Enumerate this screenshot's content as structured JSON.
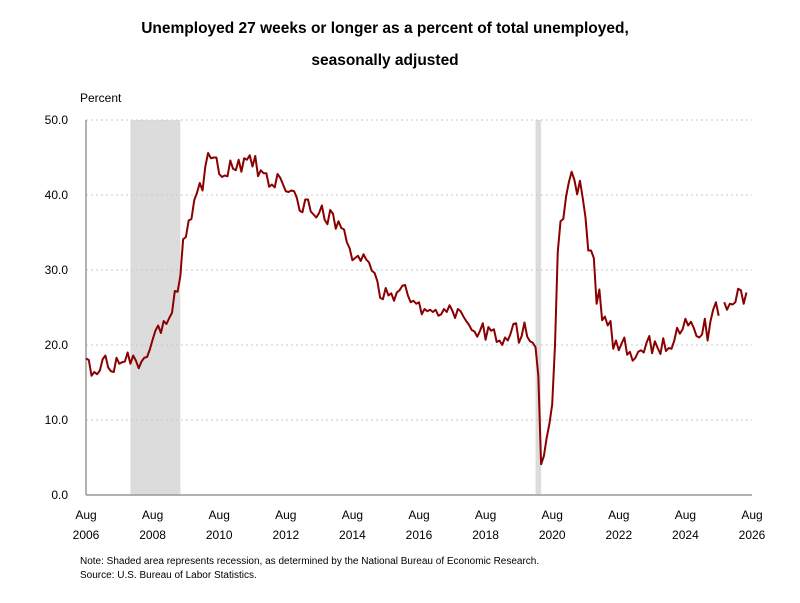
{
  "title_line1": "Unemployed 27 weeks or longer as a percent of total unemployed,",
  "title_line2": "seasonally adjusted",
  "note": "Note: Shaded area represents recession, as determined by the National Bureau of Economic Research.",
  "source": "Source: U.S. Bureau of Labor Statistics.",
  "colors": {
    "line": "#8b0000",
    "recession": "#dcdcdc",
    "grid": "#c8c8c8",
    "axis": "#000000"
  },
  "chart_data": {
    "type": "line",
    "ylabel": "Percent",
    "ylim": [
      0,
      50
    ],
    "yticks": [
      "0.0",
      "10.0",
      "20.0",
      "30.0",
      "40.0",
      "50.0"
    ],
    "xlim": [
      "2006-08",
      "2026-08"
    ],
    "xticks": [
      {
        "month": "Aug",
        "year": "2006",
        "x": "2006-08"
      },
      {
        "month": "Aug",
        "year": "2008",
        "x": "2008-08"
      },
      {
        "month": "Aug",
        "year": "2010",
        "x": "2010-08"
      },
      {
        "month": "Aug",
        "year": "2012",
        "x": "2012-08"
      },
      {
        "month": "Aug",
        "year": "2014",
        "x": "2014-08"
      },
      {
        "month": "Aug",
        "year": "2016",
        "x": "2016-08"
      },
      {
        "month": "Aug",
        "year": "2018",
        "x": "2018-08"
      },
      {
        "month": "Aug",
        "year": "2020",
        "x": "2020-08"
      },
      {
        "month": "Aug",
        "year": "2022",
        "x": "2022-08"
      },
      {
        "month": "Aug",
        "year": "2024",
        "x": "2024-08"
      },
      {
        "month": "Aug",
        "year": "2026",
        "x": "2026-08"
      }
    ],
    "grid": "horizontal-dotted",
    "recessions": [
      {
        "start": "2007-12",
        "end": "2009-06"
      },
      {
        "start": "2020-02",
        "end": "2020-04"
      }
    ],
    "series": [
      {
        "points": [
          [
            "2006-08",
            18.2
          ],
          [
            "2006-09",
            18.0
          ],
          [
            "2006-10",
            15.9
          ],
          [
            "2006-11",
            16.4
          ],
          [
            "2006-12",
            16.1
          ],
          [
            "2007-01",
            16.6
          ],
          [
            "2007-02",
            18.1
          ],
          [
            "2007-03",
            18.6
          ],
          [
            "2007-04",
            17.0
          ],
          [
            "2007-05",
            16.5
          ],
          [
            "2007-06",
            16.4
          ],
          [
            "2007-07",
            18.3
          ],
          [
            "2007-08",
            17.5
          ],
          [
            "2007-09",
            17.7
          ],
          [
            "2007-10",
            17.8
          ],
          [
            "2007-11",
            19.0
          ],
          [
            "2007-12",
            17.5
          ],
          [
            "2008-01",
            18.6
          ],
          [
            "2008-02",
            17.9
          ],
          [
            "2008-03",
            16.9
          ],
          [
            "2008-04",
            17.8
          ],
          [
            "2008-05",
            18.3
          ],
          [
            "2008-06",
            18.4
          ],
          [
            "2008-07",
            19.4
          ],
          [
            "2008-08",
            20.7
          ],
          [
            "2008-09",
            21.9
          ],
          [
            "2008-10",
            22.6
          ],
          [
            "2008-11",
            21.6
          ],
          [
            "2008-12",
            23.2
          ],
          [
            "2009-01",
            22.8
          ],
          [
            "2009-02",
            23.6
          ],
          [
            "2009-03",
            24.3
          ],
          [
            "2009-04",
            27.2
          ],
          [
            "2009-05",
            27.1
          ],
          [
            "2009-06",
            29.2
          ],
          [
            "2009-07",
            34.1
          ],
          [
            "2009-08",
            34.4
          ],
          [
            "2009-09",
            36.6
          ],
          [
            "2009-10",
            36.8
          ],
          [
            "2009-11",
            39.3
          ],
          [
            "2009-12",
            40.3
          ],
          [
            "2010-01",
            41.6
          ],
          [
            "2010-02",
            40.6
          ],
          [
            "2010-03",
            43.8
          ],
          [
            "2010-04",
            45.6
          ],
          [
            "2010-05",
            44.9
          ],
          [
            "2010-06",
            45.0
          ],
          [
            "2010-07",
            45.0
          ],
          [
            "2010-08",
            42.8
          ],
          [
            "2010-09",
            42.4
          ],
          [
            "2010-10",
            42.6
          ],
          [
            "2010-11",
            42.5
          ],
          [
            "2010-12",
            44.6
          ],
          [
            "2011-01",
            43.5
          ],
          [
            "2011-02",
            43.3
          ],
          [
            "2011-03",
            44.7
          ],
          [
            "2011-04",
            43.1
          ],
          [
            "2011-05",
            44.9
          ],
          [
            "2011-06",
            44.7
          ],
          [
            "2011-07",
            45.3
          ],
          [
            "2011-08",
            43.8
          ],
          [
            "2011-09",
            45.2
          ],
          [
            "2011-10",
            42.5
          ],
          [
            "2011-11",
            43.3
          ],
          [
            "2011-12",
            42.9
          ],
          [
            "2012-01",
            42.9
          ],
          [
            "2012-02",
            41.1
          ],
          [
            "2012-03",
            41.4
          ],
          [
            "2012-04",
            41.0
          ],
          [
            "2012-05",
            42.8
          ],
          [
            "2012-06",
            42.3
          ],
          [
            "2012-07",
            41.4
          ],
          [
            "2012-08",
            40.5
          ],
          [
            "2012-09",
            40.4
          ],
          [
            "2012-10",
            40.6
          ],
          [
            "2012-11",
            40.5
          ],
          [
            "2012-12",
            39.6
          ],
          [
            "2013-01",
            37.9
          ],
          [
            "2013-02",
            37.7
          ],
          [
            "2013-03",
            39.4
          ],
          [
            "2013-04",
            39.4
          ],
          [
            "2013-05",
            37.8
          ],
          [
            "2013-06",
            37.4
          ],
          [
            "2013-07",
            37.0
          ],
          [
            "2013-08",
            37.6
          ],
          [
            "2013-09",
            38.6
          ],
          [
            "2013-10",
            36.7
          ],
          [
            "2013-11",
            36.1
          ],
          [
            "2013-12",
            38.0
          ],
          [
            "2014-01",
            37.5
          ],
          [
            "2014-02",
            35.5
          ],
          [
            "2014-03",
            36.5
          ],
          [
            "2014-04",
            35.6
          ],
          [
            "2014-05",
            35.4
          ],
          [
            "2014-06",
            33.7
          ],
          [
            "2014-07",
            32.9
          ],
          [
            "2014-08",
            31.3
          ],
          [
            "2014-09",
            31.6
          ],
          [
            "2014-10",
            31.9
          ],
          [
            "2014-11",
            31.2
          ],
          [
            "2014-12",
            32.1
          ],
          [
            "2015-01",
            31.4
          ],
          [
            "2015-02",
            31.0
          ],
          [
            "2015-03",
            29.9
          ],
          [
            "2015-04",
            29.6
          ],
          [
            "2015-05",
            28.5
          ],
          [
            "2015-06",
            26.3
          ],
          [
            "2015-07",
            26.1
          ],
          [
            "2015-08",
            27.6
          ],
          [
            "2015-09",
            26.6
          ],
          [
            "2015-10",
            26.9
          ],
          [
            "2015-11",
            25.9
          ],
          [
            "2015-12",
            27.0
          ],
          [
            "2016-01",
            27.3
          ],
          [
            "2016-02",
            27.9
          ],
          [
            "2016-03",
            28.0
          ],
          [
            "2016-04",
            26.6
          ],
          [
            "2016-05",
            25.7
          ],
          [
            "2016-06",
            25.9
          ],
          [
            "2016-07",
            25.5
          ],
          [
            "2016-08",
            25.7
          ],
          [
            "2016-09",
            24.1
          ],
          [
            "2016-10",
            24.8
          ],
          [
            "2016-11",
            24.5
          ],
          [
            "2016-12",
            24.7
          ],
          [
            "2017-01",
            24.4
          ],
          [
            "2017-02",
            24.7
          ],
          [
            "2017-03",
            23.9
          ],
          [
            "2017-04",
            24.1
          ],
          [
            "2017-05",
            24.8
          ],
          [
            "2017-06",
            24.4
          ],
          [
            "2017-07",
            25.3
          ],
          [
            "2017-08",
            24.6
          ],
          [
            "2017-09",
            23.6
          ],
          [
            "2017-10",
            24.8
          ],
          [
            "2017-11",
            24.5
          ],
          [
            "2017-12",
            23.8
          ],
          [
            "2018-01",
            23.2
          ],
          [
            "2018-02",
            22.7
          ],
          [
            "2018-03",
            22.0
          ],
          [
            "2018-04",
            21.8
          ],
          [
            "2018-05",
            21.1
          ],
          [
            "2018-06",
            21.9
          ],
          [
            "2018-07",
            22.9
          ],
          [
            "2018-08",
            20.7
          ],
          [
            "2018-09",
            22.4
          ],
          [
            "2018-10",
            21.9
          ],
          [
            "2018-11",
            22.1
          ],
          [
            "2018-12",
            20.4
          ],
          [
            "2019-01",
            20.6
          ],
          [
            "2019-02",
            20.0
          ],
          [
            "2019-03",
            21.0
          ],
          [
            "2019-04",
            20.6
          ],
          [
            "2019-05",
            21.5
          ],
          [
            "2019-06",
            22.8
          ],
          [
            "2019-07",
            22.9
          ],
          [
            "2019-08",
            20.3
          ],
          [
            "2019-09",
            21.2
          ],
          [
            "2019-10",
            23.0
          ],
          [
            "2019-11",
            21.1
          ],
          [
            "2019-12",
            20.5
          ],
          [
            "2020-01",
            20.3
          ],
          [
            "2020-02",
            19.7
          ],
          [
            "2020-03",
            15.9
          ],
          [
            "2020-04",
            4.1
          ],
          [
            "2020-05",
            5.2
          ],
          [
            "2020-06",
            7.6
          ],
          [
            "2020-07",
            9.5
          ],
          [
            "2020-08",
            12.1
          ],
          [
            "2020-09",
            19.9
          ],
          [
            "2020-10",
            32.4
          ],
          [
            "2020-11",
            36.5
          ],
          [
            "2020-12",
            36.8
          ],
          [
            "2021-01",
            39.8
          ],
          [
            "2021-02",
            41.7
          ],
          [
            "2021-03",
            43.1
          ],
          [
            "2021-04",
            42.0
          ],
          [
            "2021-05",
            40.1
          ],
          [
            "2021-06",
            41.9
          ],
          [
            "2021-07",
            39.6
          ],
          [
            "2021-08",
            37.0
          ],
          [
            "2021-09",
            32.6
          ],
          [
            "2021-10",
            32.6
          ],
          [
            "2021-11",
            31.6
          ],
          [
            "2021-12",
            25.5
          ],
          [
            "2022-01",
            27.4
          ],
          [
            "2022-02",
            23.3
          ],
          [
            "2022-03",
            23.8
          ],
          [
            "2022-04",
            22.6
          ],
          [
            "2022-05",
            23.2
          ],
          [
            "2022-06",
            19.5
          ],
          [
            "2022-07",
            20.6
          ],
          [
            "2022-08",
            19.3
          ],
          [
            "2022-09",
            20.2
          ],
          [
            "2022-10",
            21.0
          ],
          [
            "2022-11",
            18.7
          ],
          [
            "2022-12",
            19.1
          ],
          [
            "2023-01",
            17.9
          ],
          [
            "2023-02",
            18.3
          ],
          [
            "2023-03",
            19.1
          ],
          [
            "2023-04",
            19.3
          ],
          [
            "2023-05",
            19.0
          ],
          [
            "2023-06",
            20.3
          ],
          [
            "2023-07",
            21.2
          ],
          [
            "2023-08",
            18.9
          ],
          [
            "2023-09",
            20.5
          ],
          [
            "2023-10",
            19.6
          ],
          [
            "2023-11",
            18.8
          ],
          [
            "2023-12",
            20.9
          ],
          [
            "2024-01",
            19.2
          ],
          [
            "2024-02",
            19.6
          ],
          [
            "2024-03",
            19.5
          ],
          [
            "2024-04",
            20.6
          ],
          [
            "2024-05",
            22.3
          ],
          [
            "2024-06",
            21.5
          ],
          [
            "2024-07",
            22.1
          ],
          [
            "2024-08",
            23.5
          ],
          [
            "2024-09",
            22.6
          ],
          [
            "2024-10",
            23.1
          ],
          [
            "2024-11",
            22.3
          ],
          [
            "2024-12",
            21.2
          ],
          [
            "2025-01",
            21.0
          ],
          [
            "2025-02",
            21.4
          ],
          [
            "2025-03",
            23.5
          ],
          [
            "2025-04",
            20.6
          ],
          [
            "2025-05",
            23.1
          ],
          [
            "2025-06",
            24.7
          ],
          [
            "2025-07",
            25.7
          ],
          [
            "2025-08",
            23.9
          ],
          [
            "2025-10",
            25.7
          ],
          [
            "2025-11",
            24.7
          ],
          [
            "2025-12",
            25.5
          ],
          [
            "2026-01",
            25.4
          ],
          [
            "2026-02",
            25.7
          ],
          [
            "2026-03",
            27.5
          ],
          [
            "2026-04",
            27.3
          ],
          [
            "2026-05",
            25.5
          ],
          [
            "2026-06",
            27.0
          ]
        ]
      }
    ]
  }
}
